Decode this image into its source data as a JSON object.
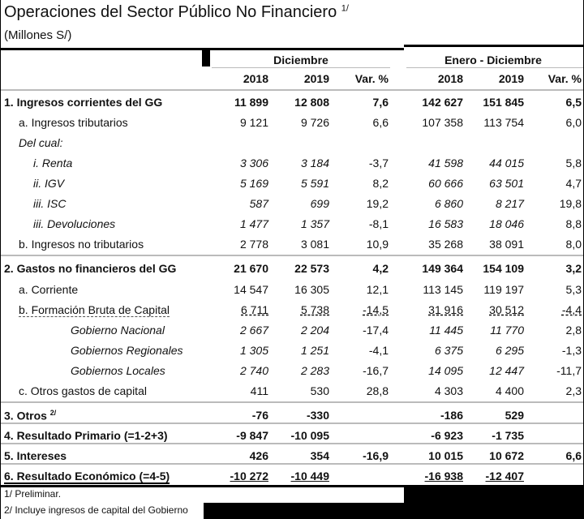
{
  "title": "Operaciones del Sector Público No Financiero",
  "title_note": "1/",
  "subtitle": "(Millones S/)",
  "groups": [
    "Diciembre",
    "Enero - Diciembre"
  ],
  "columns": [
    "2018",
    "2019",
    "Var. %",
    "2018",
    "2019",
    "Var. %"
  ],
  "rows": [
    {
      "label": "1. Ingresos corrientes del GG",
      "v": [
        "11 899",
        "12 808",
        "7,6",
        "142 627",
        "151 845",
        "6,5"
      ]
    },
    {
      "label": "a. Ingresos tributarios",
      "v": [
        "9 121",
        "9 726",
        "6,6",
        "107 358",
        "113 754",
        "6,0"
      ]
    },
    {
      "label": "Del cual:",
      "v": [
        "",
        "",
        "",
        "",
        "",
        ""
      ]
    },
    {
      "label": "i. Renta",
      "v": [
        "3 306",
        "3 184",
        "-3,7",
        "41 598",
        "44 015",
        "5,8"
      ]
    },
    {
      "label": "ii. IGV",
      "v": [
        "5 169",
        "5 591",
        "8,2",
        "60 666",
        "63 501",
        "4,7"
      ]
    },
    {
      "label": "iii. ISC",
      "v": [
        "587",
        "699",
        "19,2",
        "6 860",
        "8 217",
        "19,8"
      ]
    },
    {
      "label": "iii. Devoluciones",
      "v": [
        "1 477",
        "1 357",
        "-8,1",
        "16 583",
        "18 046",
        "8,8"
      ]
    },
    {
      "label": "b. Ingresos no tributarios",
      "v": [
        "2 778",
        "3 081",
        "10,9",
        "35 268",
        "38 091",
        "8,0"
      ]
    },
    {
      "label": "2. Gastos no financieros del GG",
      "v": [
        "21 670",
        "22 573",
        "4,2",
        "149 364",
        "154 109",
        "3,2"
      ]
    },
    {
      "label": "a. Corriente",
      "v": [
        "14 547",
        "16 305",
        "12,1",
        "113 145",
        "119 197",
        "5,3"
      ]
    },
    {
      "label": "b. Formación Bruta de Capital",
      "v": [
        "6 711",
        "5 738",
        "-14,5",
        "31 916",
        "30 512",
        "-4,4"
      ]
    },
    {
      "label": "Gobierno Nacional",
      "v": [
        "2 667",
        "2 204",
        "-17,4",
        "11 445",
        "11 770",
        "2,8"
      ]
    },
    {
      "label": "Gobiernos Regionales",
      "v": [
        "1 305",
        "1 251",
        "-4,1",
        "6 375",
        "6 295",
        "-1,3"
      ]
    },
    {
      "label": "Gobiernos Locales",
      "v": [
        "2 740",
        "2 283",
        "-16,7",
        "14 095",
        "12 447",
        "-11,7"
      ]
    },
    {
      "label": "c. Otros gastos de capital",
      "v": [
        "411",
        "530",
        "28,8",
        "4 303",
        "4 400",
        "2,3"
      ]
    },
    {
      "label": "3. Otros",
      "note": "2/",
      "v": [
        "-76",
        "-330",
        "",
        "-186",
        "529",
        ""
      ]
    },
    {
      "label": "4. Resultado Primario (=1-2+3)",
      "v": [
        "-9 847",
        "-10 095",
        "",
        "-6 923",
        "-1 735",
        ""
      ]
    },
    {
      "label": "5. Intereses",
      "v": [
        "426",
        "354",
        "-16,9",
        "10 015",
        "10 672",
        "6,6"
      ]
    },
    {
      "label": "6. Resultado Económico (=4-5)",
      "v": [
        "-10 272",
        "-10 449",
        "",
        "-16 938",
        "-12 407",
        ""
      ]
    }
  ],
  "footnotes": [
    "1/ Preliminar.",
    "2/ Incluye ingresos de capital del Gobierno"
  ]
}
